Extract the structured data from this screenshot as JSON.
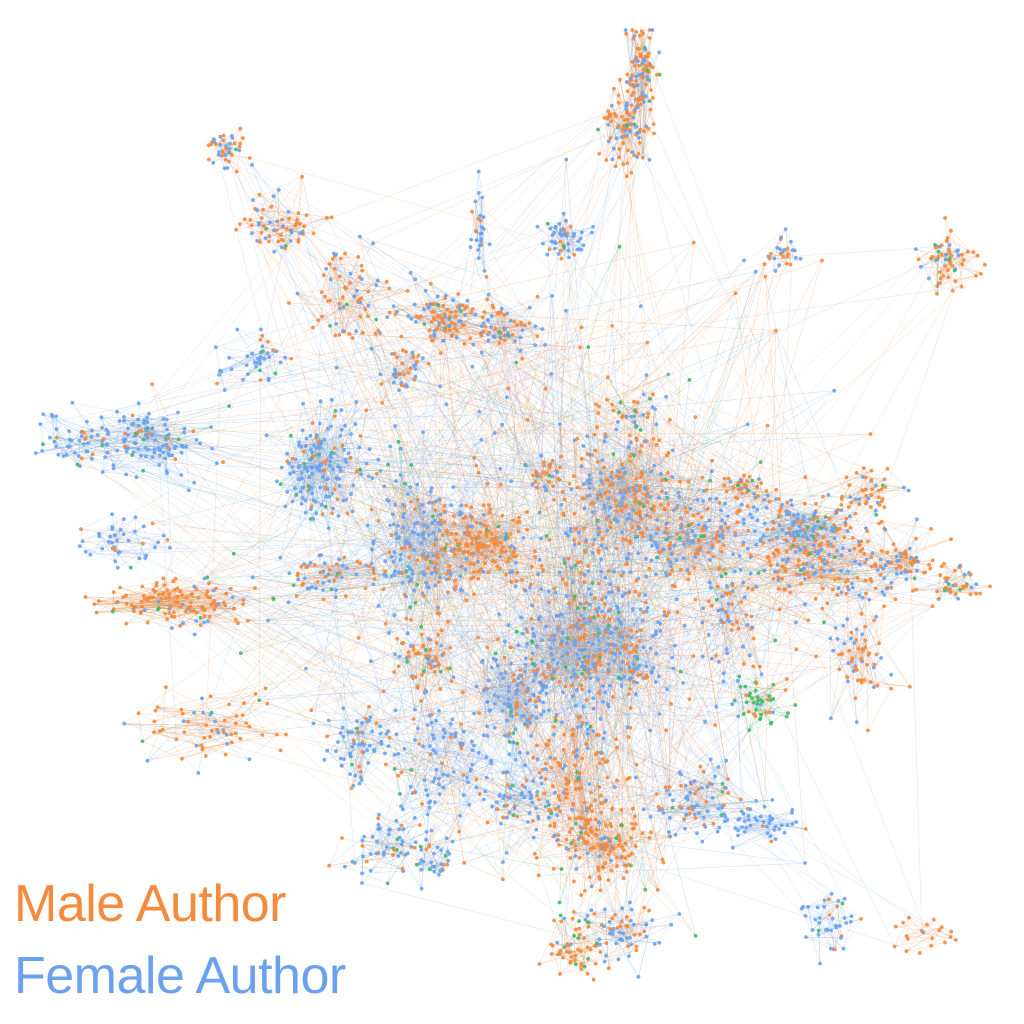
{
  "legend": {
    "male_label": "Male Author",
    "female_label": "Female Author"
  },
  "colors": {
    "male": "#f58a3c",
    "female": "#6aa2ef",
    "other": "#44b96a",
    "background": "#ffffff"
  }
}
